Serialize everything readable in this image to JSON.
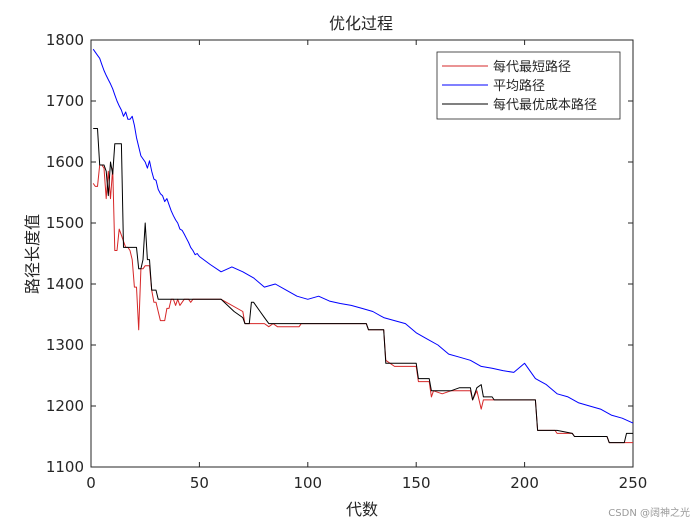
{
  "chart_data": {
    "type": "line",
    "title": "优化过程",
    "xlabel": "代数",
    "ylabel": "路径长度值",
    "xlim": [
      0,
      250
    ],
    "ylim": [
      1100,
      1800
    ],
    "xticks": [
      0,
      50,
      100,
      150,
      200,
      250
    ],
    "yticks": [
      1100,
      1200,
      1300,
      1400,
      1500,
      1600,
      1700,
      1800
    ],
    "grid": false,
    "legend_position": "top-right",
    "series": [
      {
        "name": "每代最短路径",
        "color": "#d62728",
        "points": [
          [
            1,
            1565
          ],
          [
            2,
            1560
          ],
          [
            3,
            1560
          ],
          [
            4,
            1595
          ],
          [
            5,
            1595
          ],
          [
            6,
            1590
          ],
          [
            7,
            1540
          ],
          [
            8,
            1585
          ],
          [
            9,
            1540
          ],
          [
            10,
            1590
          ],
          [
            11,
            1455
          ],
          [
            12,
            1455
          ],
          [
            13,
            1490
          ],
          [
            14,
            1480
          ],
          [
            15,
            1470
          ],
          [
            16,
            1460
          ],
          [
            17,
            1460
          ],
          [
            18,
            1455
          ],
          [
            19,
            1440
          ],
          [
            20,
            1395
          ],
          [
            21,
            1395
          ],
          [
            22,
            1325
          ],
          [
            23,
            1425
          ],
          [
            24,
            1425
          ],
          [
            25,
            1430
          ],
          [
            26,
            1430
          ],
          [
            27,
            1430
          ],
          [
            28,
            1390
          ],
          [
            29,
            1370
          ],
          [
            30,
            1370
          ],
          [
            31,
            1355
          ],
          [
            32,
            1340
          ],
          [
            33,
            1340
          ],
          [
            34,
            1340
          ],
          [
            35,
            1360
          ],
          [
            36,
            1360
          ],
          [
            37,
            1375
          ],
          [
            38,
            1375
          ],
          [
            39,
            1365
          ],
          [
            40,
            1375
          ],
          [
            41,
            1365
          ],
          [
            42,
            1370
          ],
          [
            43,
            1375
          ],
          [
            44,
            1375
          ],
          [
            45,
            1375
          ],
          [
            46,
            1370
          ],
          [
            47,
            1375
          ],
          [
            48,
            1375
          ],
          [
            49,
            1375
          ],
          [
            50,
            1375
          ],
          [
            51,
            1375
          ],
          [
            52,
            1375
          ],
          [
            60,
            1375
          ],
          [
            70,
            1355
          ],
          [
            71,
            1335
          ],
          [
            80,
            1335
          ],
          [
            82,
            1330
          ],
          [
            84,
            1335
          ],
          [
            86,
            1330
          ],
          [
            90,
            1330
          ],
          [
            96,
            1330
          ],
          [
            97,
            1335
          ],
          [
            120,
            1335
          ],
          [
            127,
            1335
          ],
          [
            128,
            1325
          ],
          [
            135,
            1325
          ],
          [
            136,
            1275
          ],
          [
            140,
            1265
          ],
          [
            145,
            1265
          ],
          [
            150,
            1265
          ],
          [
            151,
            1240
          ],
          [
            156,
            1240
          ],
          [
            157,
            1215
          ],
          [
            158,
            1225
          ],
          [
            162,
            1220
          ],
          [
            166,
            1225
          ],
          [
            170,
            1225
          ],
          [
            175,
            1225
          ],
          [
            176,
            1210
          ],
          [
            178,
            1225
          ],
          [
            180,
            1195
          ],
          [
            181,
            1210
          ],
          [
            185,
            1210
          ],
          [
            190,
            1210
          ],
          [
            196,
            1210
          ],
          [
            205,
            1210
          ],
          [
            206,
            1160
          ],
          [
            214,
            1160
          ],
          [
            215,
            1155
          ],
          [
            222,
            1155
          ],
          [
            223,
            1150
          ],
          [
            238,
            1150
          ],
          [
            239,
            1140
          ],
          [
            250,
            1140
          ]
        ]
      },
      {
        "name": "平均路径",
        "color": "#0000ff",
        "points": [
          [
            1,
            1785
          ],
          [
            2,
            1780
          ],
          [
            3,
            1775
          ],
          [
            4,
            1770
          ],
          [
            5,
            1760
          ],
          [
            6,
            1750
          ],
          [
            7,
            1742
          ],
          [
            8,
            1735
          ],
          [
            9,
            1728
          ],
          [
            10,
            1720
          ],
          [
            11,
            1710
          ],
          [
            12,
            1700
          ],
          [
            13,
            1692
          ],
          [
            14,
            1685
          ],
          [
            15,
            1675
          ],
          [
            16,
            1682
          ],
          [
            17,
            1670
          ],
          [
            18,
            1670
          ],
          [
            19,
            1675
          ],
          [
            20,
            1660
          ],
          [
            21,
            1640
          ],
          [
            22,
            1625
          ],
          [
            23,
            1610
          ],
          [
            24,
            1605
          ],
          [
            25,
            1600
          ],
          [
            26,
            1590
          ],
          [
            27,
            1602
          ],
          [
            28,
            1585
          ],
          [
            29,
            1572
          ],
          [
            30,
            1570
          ],
          [
            31,
            1555
          ],
          [
            32,
            1548
          ],
          [
            33,
            1545
          ],
          [
            34,
            1535
          ],
          [
            35,
            1540
          ],
          [
            36,
            1530
          ],
          [
            37,
            1520
          ],
          [
            38,
            1512
          ],
          [
            39,
            1505
          ],
          [
            40,
            1500
          ],
          [
            41,
            1490
          ],
          [
            42,
            1488
          ],
          [
            43,
            1482
          ],
          [
            44,
            1475
          ],
          [
            45,
            1468
          ],
          [
            46,
            1460
          ],
          [
            47,
            1455
          ],
          [
            48,
            1448
          ],
          [
            49,
            1450
          ],
          [
            50,
            1445
          ],
          [
            55,
            1432
          ],
          [
            60,
            1420
          ],
          [
            65,
            1428
          ],
          [
            70,
            1420
          ],
          [
            75,
            1410
          ],
          [
            80,
            1395
          ],
          [
            85,
            1400
          ],
          [
            90,
            1390
          ],
          [
            95,
            1380
          ],
          [
            100,
            1375
          ],
          [
            105,
            1380
          ],
          [
            110,
            1372
          ],
          [
            115,
            1368
          ],
          [
            120,
            1365
          ],
          [
            125,
            1360
          ],
          [
            130,
            1355
          ],
          [
            135,
            1345
          ],
          [
            140,
            1340
          ],
          [
            145,
            1335
          ],
          [
            150,
            1320
          ],
          [
            155,
            1310
          ],
          [
            160,
            1300
          ],
          [
            165,
            1285
          ],
          [
            170,
            1280
          ],
          [
            175,
            1275
          ],
          [
            180,
            1265
          ],
          [
            185,
            1262
          ],
          [
            190,
            1258
          ],
          [
            195,
            1255
          ],
          [
            200,
            1270
          ],
          [
            205,
            1245
          ],
          [
            210,
            1235
          ],
          [
            215,
            1220
          ],
          [
            220,
            1215
          ],
          [
            225,
            1205
          ],
          [
            230,
            1200
          ],
          [
            235,
            1195
          ],
          [
            240,
            1185
          ],
          [
            245,
            1180
          ],
          [
            250,
            1172
          ]
        ]
      },
      {
        "name": "每代最优成本路径",
        "color": "#000000",
        "points": [
          [
            1,
            1655
          ],
          [
            2,
            1655
          ],
          [
            3,
            1655
          ],
          [
            4,
            1595
          ],
          [
            5,
            1595
          ],
          [
            6,
            1595
          ],
          [
            7,
            1585
          ],
          [
            8,
            1545
          ],
          [
            9,
            1600
          ],
          [
            10,
            1580
          ],
          [
            11,
            1630
          ],
          [
            12,
            1630
          ],
          [
            13,
            1630
          ],
          [
            14,
            1630
          ],
          [
            15,
            1460
          ],
          [
            16,
            1460
          ],
          [
            17,
            1460
          ],
          [
            18,
            1460
          ],
          [
            19,
            1460
          ],
          [
            20,
            1460
          ],
          [
            21,
            1460
          ],
          [
            22,
            1425
          ],
          [
            23,
            1425
          ],
          [
            24,
            1440
          ],
          [
            25,
            1500
          ],
          [
            26,
            1440
          ],
          [
            27,
            1440
          ],
          [
            28,
            1390
          ],
          [
            29,
            1390
          ],
          [
            30,
            1390
          ],
          [
            31,
            1375
          ],
          [
            32,
            1375
          ],
          [
            33,
            1375
          ],
          [
            34,
            1375
          ],
          [
            35,
            1375
          ],
          [
            40,
            1375
          ],
          [
            45,
            1375
          ],
          [
            50,
            1375
          ],
          [
            51,
            1375
          ],
          [
            60,
            1375
          ],
          [
            66,
            1355
          ],
          [
            70,
            1345
          ],
          [
            71,
            1335
          ],
          [
            73,
            1335
          ],
          [
            74,
            1370
          ],
          [
            75,
            1370
          ],
          [
            78,
            1355
          ],
          [
            80,
            1345
          ],
          [
            82,
            1335
          ],
          [
            90,
            1335
          ],
          [
            100,
            1335
          ],
          [
            110,
            1335
          ],
          [
            120,
            1335
          ],
          [
            127,
            1335
          ],
          [
            128,
            1325
          ],
          [
            135,
            1325
          ],
          [
            136,
            1270
          ],
          [
            145,
            1270
          ],
          [
            150,
            1270
          ],
          [
            151,
            1245
          ],
          [
            156,
            1245
          ],
          [
            157,
            1225
          ],
          [
            166,
            1225
          ],
          [
            170,
            1230
          ],
          [
            175,
            1230
          ],
          [
            176,
            1210
          ],
          [
            178,
            1230
          ],
          [
            180,
            1235
          ],
          [
            181,
            1215
          ],
          [
            185,
            1215
          ],
          [
            186,
            1210
          ],
          [
            205,
            1210
          ],
          [
            206,
            1160
          ],
          [
            214,
            1160
          ],
          [
            215,
            1160
          ],
          [
            222,
            1155
          ],
          [
            223,
            1150
          ],
          [
            238,
            1150
          ],
          [
            239,
            1140
          ],
          [
            246,
            1140
          ],
          [
            247,
            1155
          ],
          [
            250,
            1155
          ]
        ]
      }
    ]
  },
  "watermark": "CSDN @阔神之光"
}
